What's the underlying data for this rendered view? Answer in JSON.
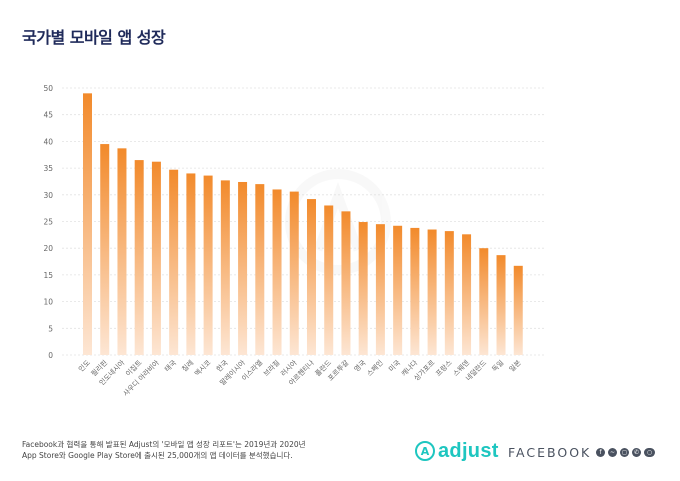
{
  "page": {
    "title": "국가별 모바일 앱 성장",
    "footnote": [
      "Facebook과 협력을 통해 발표된 Adjust의 '모바일 앱 성장 리포트'는 2019년과 2020년",
      "App Store와 Google Play Store에 출시된 25,000개의 앱 데이터를 분석했습니다."
    ],
    "adjust_logo": "adjust",
    "facebook_logo": "FACEBOOK",
    "social_icons": [
      "facebook-icon",
      "messenger-icon",
      "instagram-icon",
      "whatsapp-icon",
      "oculus-icon"
    ]
  },
  "chart_data": {
    "type": "bar",
    "categories": [
      "인도",
      "필리핀",
      "인도네시아",
      "이집트",
      "사우디 아라비아",
      "태국",
      "칠레",
      "멕시코",
      "한국",
      "말레이시아",
      "이스라엘",
      "브라질",
      "러시아",
      "아르헨티나",
      "폴란드",
      "포르투갈",
      "영국",
      "스페인",
      "미국",
      "캐나다",
      "싱가포르",
      "프랑스",
      "스웨덴",
      "네덜란드",
      "독일",
      "일본"
    ],
    "values": [
      49.0,
      39.5,
      38.7,
      36.5,
      36.2,
      34.7,
      34.0,
      33.6,
      32.7,
      32.4,
      32.0,
      31.0,
      30.6,
      29.2,
      28.0,
      26.9,
      24.9,
      24.5,
      24.2,
      23.8,
      23.5,
      23.2,
      22.6,
      20.0,
      18.7,
      16.7
    ],
    "yticks": [
      0,
      5,
      10,
      15,
      20,
      25,
      30,
      35,
      40,
      45,
      50
    ],
    "ylim": [
      0,
      50
    ],
    "title": "국가별 모바일 앱 성장",
    "xlabel": "",
    "ylabel": "",
    "grid": true,
    "colors": {
      "bar_top": "#f28a2b",
      "bar_bottom": "#fde6d4",
      "grid": "#e2e2e2",
      "tick_text": "#666666"
    }
  }
}
